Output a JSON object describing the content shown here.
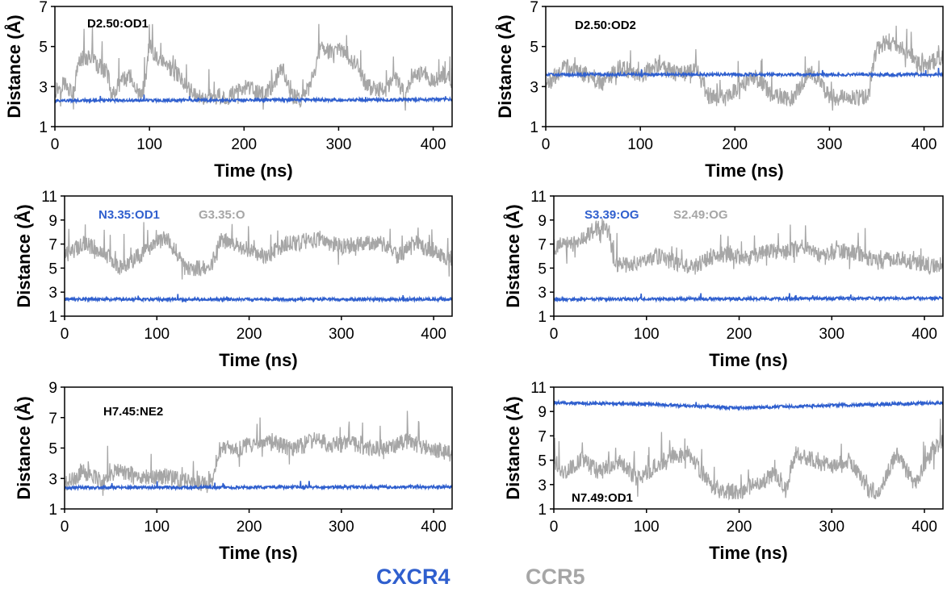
{
  "colors": {
    "cxcr4": "#2f5fce",
    "ccr5": "#a6a6a6",
    "axis": "#000000"
  },
  "legend": {
    "cxcr4": "CXCR4",
    "ccr5": "CCR5"
  },
  "chart_data": [
    {
      "type": "line",
      "xlabel": "Time (ns)",
      "ylabel": "Distance (Å)",
      "xlim": [
        0,
        420
      ],
      "ylim": [
        1,
        7
      ],
      "xticks": [
        0,
        100,
        200,
        300,
        400
      ],
      "yticks": [
        1,
        3,
        5,
        7
      ],
      "annotations": [
        {
          "text": "D2.50:OD1",
          "color": "#000000"
        }
      ],
      "series": [
        {
          "name": "CXCR4",
          "color": "#2f5fce",
          "x": [
            0,
            420
          ],
          "y": [
            2.3,
            2.35
          ]
        },
        {
          "name": "CCR5",
          "color": "#a6a6a6",
          "x": [
            0,
            10,
            20,
            25,
            30,
            40,
            45,
            55,
            60,
            70,
            80,
            90,
            95,
            100,
            110,
            120,
            130,
            150,
            180,
            200,
            220,
            230,
            240,
            250,
            260,
            270,
            280,
            285,
            295,
            300,
            310,
            320,
            330,
            350,
            360,
            370,
            380,
            390,
            400,
            410,
            420
          ],
          "y": [
            2.8,
            3.2,
            2.6,
            4.3,
            4.4,
            4.5,
            4.0,
            3.8,
            2.6,
            3.2,
            3.5,
            2.6,
            3.0,
            5.0,
            4.3,
            4.0,
            3.6,
            2.5,
            2.4,
            3.0,
            2.6,
            3.0,
            4.0,
            2.5,
            2.4,
            3.0,
            4.8,
            5.0,
            4.5,
            5.0,
            4.4,
            4.0,
            3.0,
            2.8,
            3.4,
            2.6,
            3.5,
            3.8,
            3.2,
            3.6,
            3.3
          ]
        }
      ]
    },
    {
      "type": "line",
      "xlabel": "Time (ns)",
      "ylabel": "Distance (Å)",
      "xlim": [
        0,
        420
      ],
      "ylim": [
        1,
        7
      ],
      "xticks": [
        0,
        100,
        200,
        300,
        400
      ],
      "yticks": [
        1,
        3,
        5,
        7
      ],
      "annotations": [
        {
          "text": "D2.50:OD2",
          "color": "#000000"
        }
      ],
      "series": [
        {
          "name": "CXCR4",
          "color": "#2f5fce",
          "x": [
            0,
            420
          ],
          "y": [
            3.6,
            3.6
          ]
        },
        {
          "name": "CCR5",
          "color": "#a6a6a6",
          "x": [
            0,
            20,
            40,
            60,
            80,
            100,
            120,
            140,
            160,
            170,
            180,
            200,
            220,
            240,
            260,
            280,
            300,
            320,
            340,
            350,
            360,
            380,
            400,
            420
          ],
          "y": [
            3.0,
            4.0,
            3.6,
            3.2,
            4.0,
            3.5,
            4.2,
            3.6,
            3.8,
            2.6,
            2.4,
            2.8,
            3.5,
            2.6,
            2.4,
            3.8,
            2.5,
            2.4,
            2.5,
            5.0,
            5.2,
            4.8,
            4.0,
            4.5
          ]
        }
      ]
    },
    {
      "type": "line",
      "xlabel": "Time (ns)",
      "ylabel": "Distance (Å)",
      "xlim": [
        0,
        420
      ],
      "ylim": [
        1,
        11
      ],
      "xticks": [
        0,
        100,
        200,
        300,
        400
      ],
      "yticks": [
        1,
        3,
        5,
        7,
        9,
        11
      ],
      "annotations": [
        {
          "text": "N3.35:OD1",
          "color": "#2f5fce"
        },
        {
          "text": "G3.35:O",
          "color": "#a6a6a6"
        }
      ],
      "series": [
        {
          "name": "CXCR4",
          "color": "#2f5fce",
          "x": [
            0,
            420
          ],
          "y": [
            2.4,
            2.4
          ]
        },
        {
          "name": "CCR5",
          "color": "#a6a6a6",
          "x": [
            0,
            10,
            20,
            40,
            60,
            80,
            100,
            110,
            120,
            130,
            150,
            160,
            170,
            180,
            200,
            220,
            240,
            260,
            280,
            300,
            320,
            340,
            360,
            380,
            400,
            410,
            420
          ],
          "y": [
            6.0,
            6.5,
            7.0,
            6.5,
            5.0,
            6.0,
            7.2,
            7.5,
            6.5,
            5.0,
            5.0,
            5.5,
            7.5,
            7.0,
            6.5,
            6.0,
            7.0,
            7.2,
            7.5,
            6.8,
            7.0,
            7.2,
            6.0,
            7.0,
            6.5,
            6.0,
            5.8
          ]
        }
      ]
    },
    {
      "type": "line",
      "xlabel": "Time (ns)",
      "ylabel": "Distance (Å)",
      "xlim": [
        0,
        420
      ],
      "ylim": [
        1,
        11
      ],
      "xticks": [
        0,
        100,
        200,
        300,
        400
      ],
      "yticks": [
        1,
        3,
        5,
        7,
        9,
        11
      ],
      "annotations": [
        {
          "text": "S3.39:OG",
          "color": "#2f5fce"
        },
        {
          "text": "S2.49:OG",
          "color": "#a6a6a6"
        }
      ],
      "series": [
        {
          "name": "CXCR4",
          "color": "#2f5fce",
          "x": [
            0,
            420
          ],
          "y": [
            2.4,
            2.5
          ]
        },
        {
          "name": "CCR5",
          "color": "#a6a6a6",
          "x": [
            0,
            20,
            40,
            50,
            60,
            65,
            70,
            90,
            110,
            130,
            150,
            170,
            190,
            210,
            230,
            250,
            270,
            290,
            310,
            330,
            350,
            370,
            390,
            410,
            420
          ],
          "y": [
            6.8,
            7.0,
            8.0,
            8.5,
            8.0,
            5.5,
            5.2,
            5.5,
            6.0,
            5.5,
            5.0,
            6.0,
            6.2,
            5.8,
            6.5,
            6.3,
            6.8,
            6.0,
            6.5,
            6.2,
            5.5,
            5.8,
            5.5,
            5.2,
            5.4
          ]
        }
      ]
    },
    {
      "type": "line",
      "xlabel": "Time (ns)",
      "ylabel": "Distance (Å)",
      "xlim": [
        0,
        420
      ],
      "ylim": [
        1,
        9
      ],
      "xticks": [
        0,
        100,
        200,
        300,
        400
      ],
      "yticks": [
        1,
        3,
        5,
        7,
        9
      ],
      "annotations": [
        {
          "text": "H7.45:NE2",
          "color": "#000000"
        }
      ],
      "series": [
        {
          "name": "CXCR4",
          "color": "#2f5fce",
          "x": [
            0,
            420
          ],
          "y": [
            2.4,
            2.45
          ]
        },
        {
          "name": "CCR5",
          "color": "#a6a6a6",
          "x": [
            0,
            20,
            40,
            60,
            80,
            100,
            120,
            140,
            160,
            170,
            190,
            210,
            230,
            250,
            270,
            290,
            310,
            330,
            350,
            370,
            390,
            410,
            420
          ],
          "y": [
            2.6,
            3.4,
            2.8,
            3.6,
            3.0,
            3.2,
            3.0,
            2.6,
            2.8,
            5.0,
            5.0,
            5.5,
            5.2,
            5.0,
            5.5,
            5.2,
            5.3,
            5.0,
            5.0,
            5.5,
            5.0,
            4.8,
            4.6
          ]
        }
      ]
    },
    {
      "type": "line",
      "xlabel": "Time (ns)",
      "ylabel": "Distance (Å)",
      "xlim": [
        0,
        420
      ],
      "ylim": [
        1,
        11
      ],
      "xticks": [
        0,
        100,
        200,
        300,
        400
      ],
      "yticks": [
        1,
        3,
        5,
        7,
        9,
        11
      ],
      "annotations": [
        {
          "text": "N7.49:OD1",
          "color": "#000000"
        }
      ],
      "series": [
        {
          "name": "CXCR4",
          "color": "#2f5fce",
          "x": [
            0,
            100,
            200,
            300,
            420
          ],
          "y": [
            9.7,
            9.6,
            9.3,
            9.5,
            9.7
          ]
        },
        {
          "name": "CCR5",
          "color": "#a6a6a6",
          "x": [
            0,
            10,
            30,
            50,
            70,
            90,
            110,
            130,
            150,
            170,
            180,
            200,
            220,
            240,
            250,
            260,
            280,
            300,
            320,
            340,
            350,
            370,
            390,
            410,
            420
          ],
          "y": [
            5.0,
            4.0,
            5.0,
            4.0,
            5.0,
            3.5,
            4.5,
            5.5,
            5.0,
            3.0,
            2.5,
            2.4,
            3.0,
            4.0,
            2.5,
            5.5,
            5.0,
            4.5,
            5.0,
            2.5,
            2.4,
            5.5,
            3.0,
            6.0,
            6.5
          ]
        }
      ]
    }
  ]
}
